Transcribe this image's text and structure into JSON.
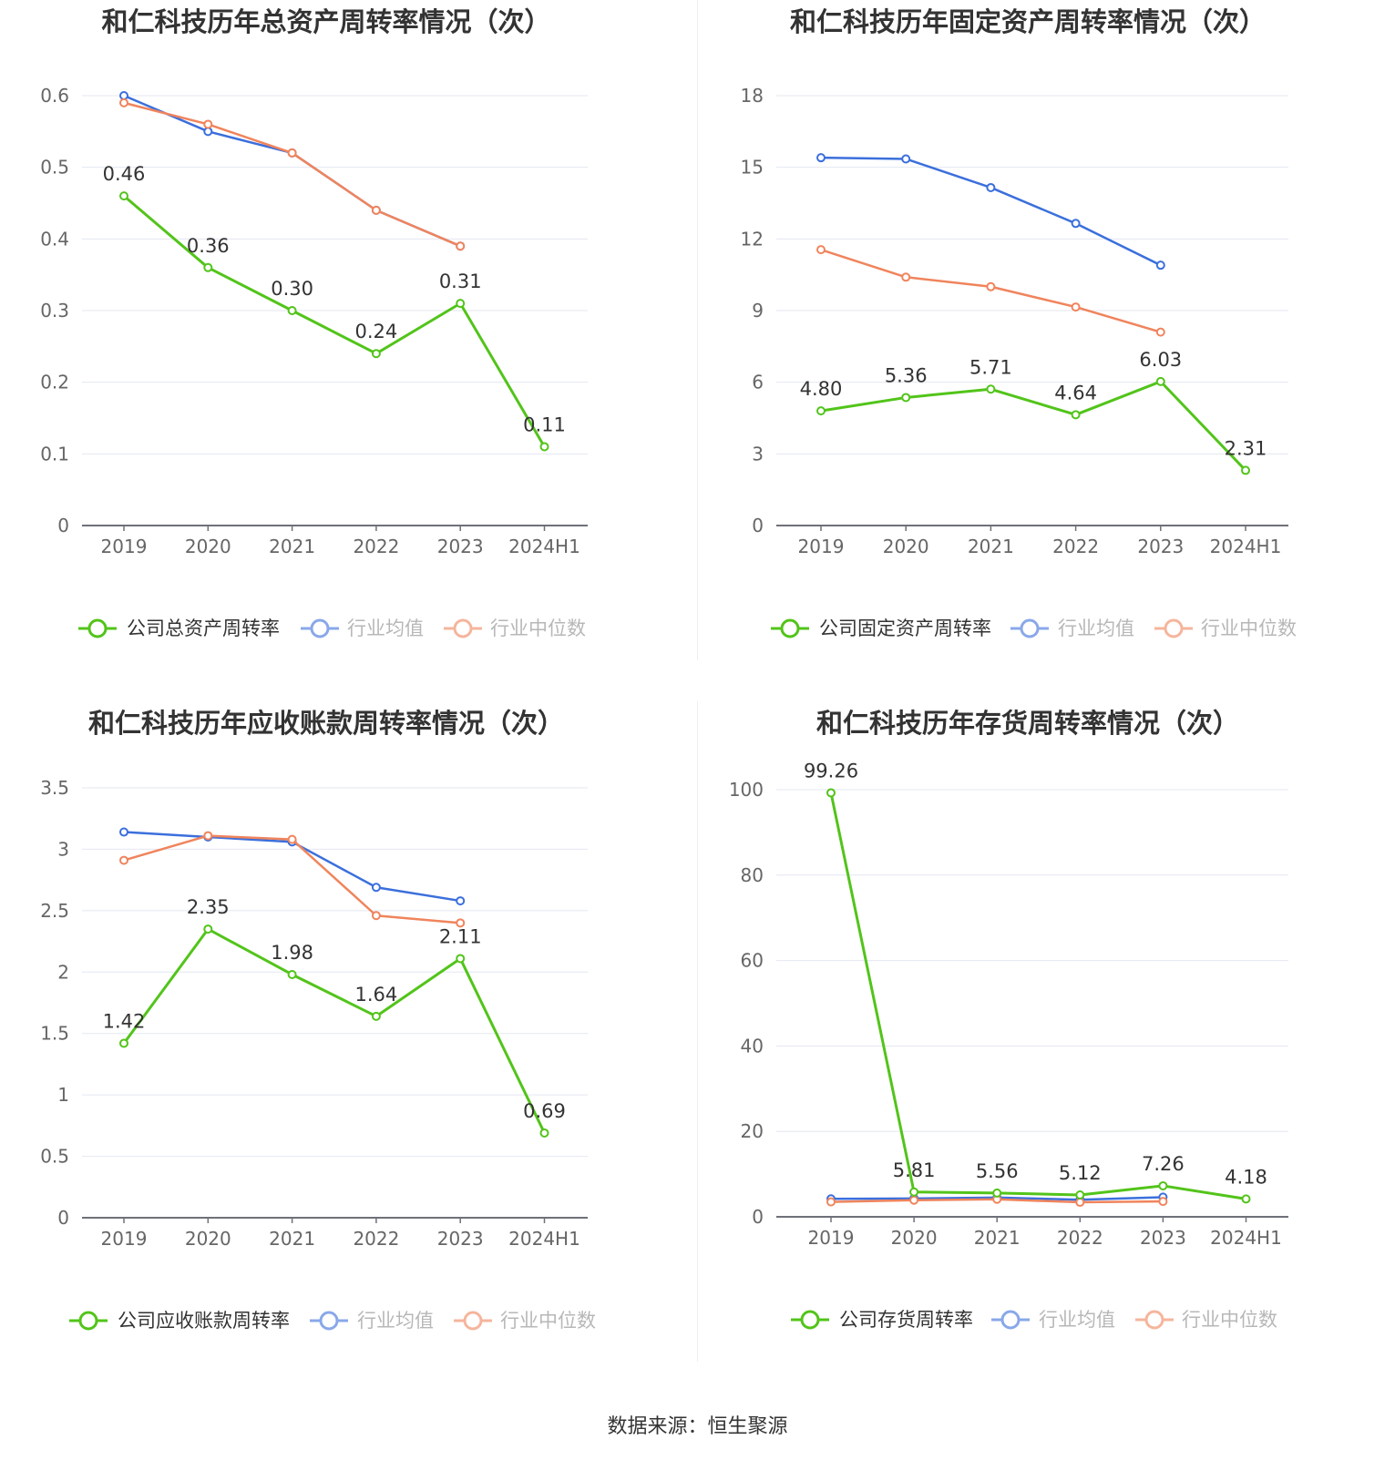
{
  "source": {
    "label": "数据来源：",
    "value": "恒生聚源"
  },
  "colors": {
    "company": "#52c41a",
    "avg": "#3b6fdc",
    "median": "#f0845c",
    "grid": "#e4e7f2",
    "axis": "#666666"
  },
  "chart_data": [
    {
      "type": "line",
      "title": "和仁科技历年总资产周转率情况（次）",
      "categories": [
        "2019",
        "2020",
        "2021",
        "2022",
        "2023",
        "2024H1"
      ],
      "ylim": [
        0,
        0.6
      ],
      "yticks": [
        "0",
        "0.1",
        "0.2",
        "0.3",
        "0.4",
        "0.5",
        "0.6"
      ],
      "series": [
        {
          "name": "公司总资产周转率",
          "role": "company",
          "values": [
            0.46,
            0.36,
            0.3,
            0.24,
            0.31,
            0.11
          ],
          "labels": [
            "0.46",
            "0.36",
            "0.30",
            "0.24",
            "0.31",
            "0.11"
          ]
        },
        {
          "name": "行业均值",
          "role": "avg",
          "values": [
            0.6,
            0.55,
            0.52,
            0.44,
            0.39,
            null
          ]
        },
        {
          "name": "行业中位数",
          "role": "median",
          "values": [
            0.59,
            0.56,
            0.52,
            0.44,
            0.39,
            null
          ]
        }
      ]
    },
    {
      "type": "line",
      "title": "和仁科技历年固定资产周转率情况（次）",
      "categories": [
        "2019",
        "2020",
        "2021",
        "2022",
        "2023",
        "2024H1"
      ],
      "ylim": [
        0,
        18
      ],
      "yticks": [
        "0",
        "3",
        "6",
        "9",
        "12",
        "15",
        "18"
      ],
      "series": [
        {
          "name": "公司固定资产周转率",
          "role": "company",
          "values": [
            4.8,
            5.36,
            5.71,
            4.64,
            6.03,
            2.31
          ],
          "labels": [
            "4.80",
            "5.36",
            "5.71",
            "4.64",
            "6.03",
            "2.31"
          ]
        },
        {
          "name": "行业均值",
          "role": "avg",
          "values": [
            15.4,
            15.35,
            14.15,
            12.65,
            10.9,
            null
          ]
        },
        {
          "name": "行业中位数",
          "role": "median",
          "values": [
            11.55,
            10.4,
            10.0,
            9.15,
            8.1,
            null
          ]
        }
      ]
    },
    {
      "type": "line",
      "title": "和仁科技历年应收账款周转率情况（次）",
      "categories": [
        "2019",
        "2020",
        "2021",
        "2022",
        "2023",
        "2024H1"
      ],
      "ylim": [
        0,
        3.5
      ],
      "yticks": [
        "0",
        "0.5",
        "1",
        "1.5",
        "2",
        "2.5",
        "3",
        "3.5"
      ],
      "series": [
        {
          "name": "公司应收账款周转率",
          "role": "company",
          "values": [
            1.42,
            2.35,
            1.98,
            1.64,
            2.11,
            0.69
          ],
          "labels": [
            "1.42",
            "2.35",
            "1.98",
            "1.64",
            "2.11",
            "0.69"
          ]
        },
        {
          "name": "行业均值",
          "role": "avg",
          "values": [
            3.14,
            3.1,
            3.06,
            2.69,
            2.58,
            null
          ]
        },
        {
          "name": "行业中位数",
          "role": "median",
          "values": [
            2.91,
            3.11,
            3.08,
            2.46,
            2.4,
            null
          ]
        }
      ]
    },
    {
      "type": "line",
      "title": "和仁科技历年存货周转率情况（次）",
      "categories": [
        "2019",
        "2020",
        "2021",
        "2022",
        "2023",
        "2024H1"
      ],
      "ylim": [
        0,
        100
      ],
      "yticks": [
        "0",
        "20",
        "40",
        "60",
        "80",
        "100"
      ],
      "series": [
        {
          "name": "公司存货周转率",
          "role": "company",
          "values": [
            99.26,
            5.81,
            5.56,
            5.12,
            7.26,
            4.18
          ],
          "labels": [
            "99.26",
            "5.81",
            "5.56",
            "5.12",
            "7.26",
            "4.18"
          ]
        },
        {
          "name": "行业均值",
          "role": "avg",
          "values": [
            4.2,
            4.3,
            4.5,
            4.0,
            4.6,
            null
          ]
        },
        {
          "name": "行业中位数",
          "role": "median",
          "values": [
            3.5,
            3.9,
            4.1,
            3.4,
            3.6,
            null
          ]
        }
      ]
    }
  ]
}
